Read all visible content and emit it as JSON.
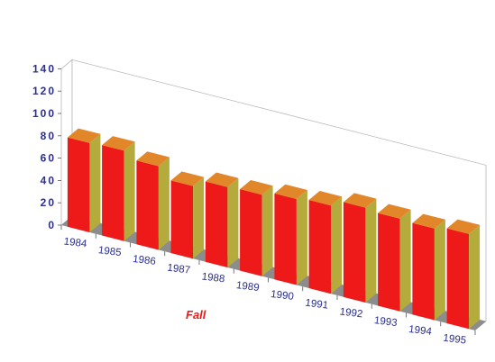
{
  "chart_data": {
    "type": "bar",
    "style": "3d",
    "categories": [
      "1984",
      "1985",
      "1986",
      "1987",
      "1988",
      "1989",
      "1990",
      "1991",
      "1992",
      "1993",
      "1994",
      "1995"
    ],
    "series": [
      {
        "name": "Fall",
        "values": [
          80,
          81,
          75,
          65,
          72,
          73,
          77,
          79,
          85,
          83,
          82,
          85
        ]
      }
    ],
    "y_ticks": [
      "0",
      "20",
      "40",
      "60",
      "80",
      "100",
      "120",
      "140"
    ],
    "ylim": [
      0,
      140
    ],
    "grid": false,
    "legend": "bottom-left",
    "colors": {
      "front": "#ee1a1a",
      "side": "#b5ab3c",
      "top": "#e2862a",
      "floor": "#8c8c8c",
      "axis_text": "#2b2f8f",
      "legend_text": "#ee1a1a"
    }
  }
}
